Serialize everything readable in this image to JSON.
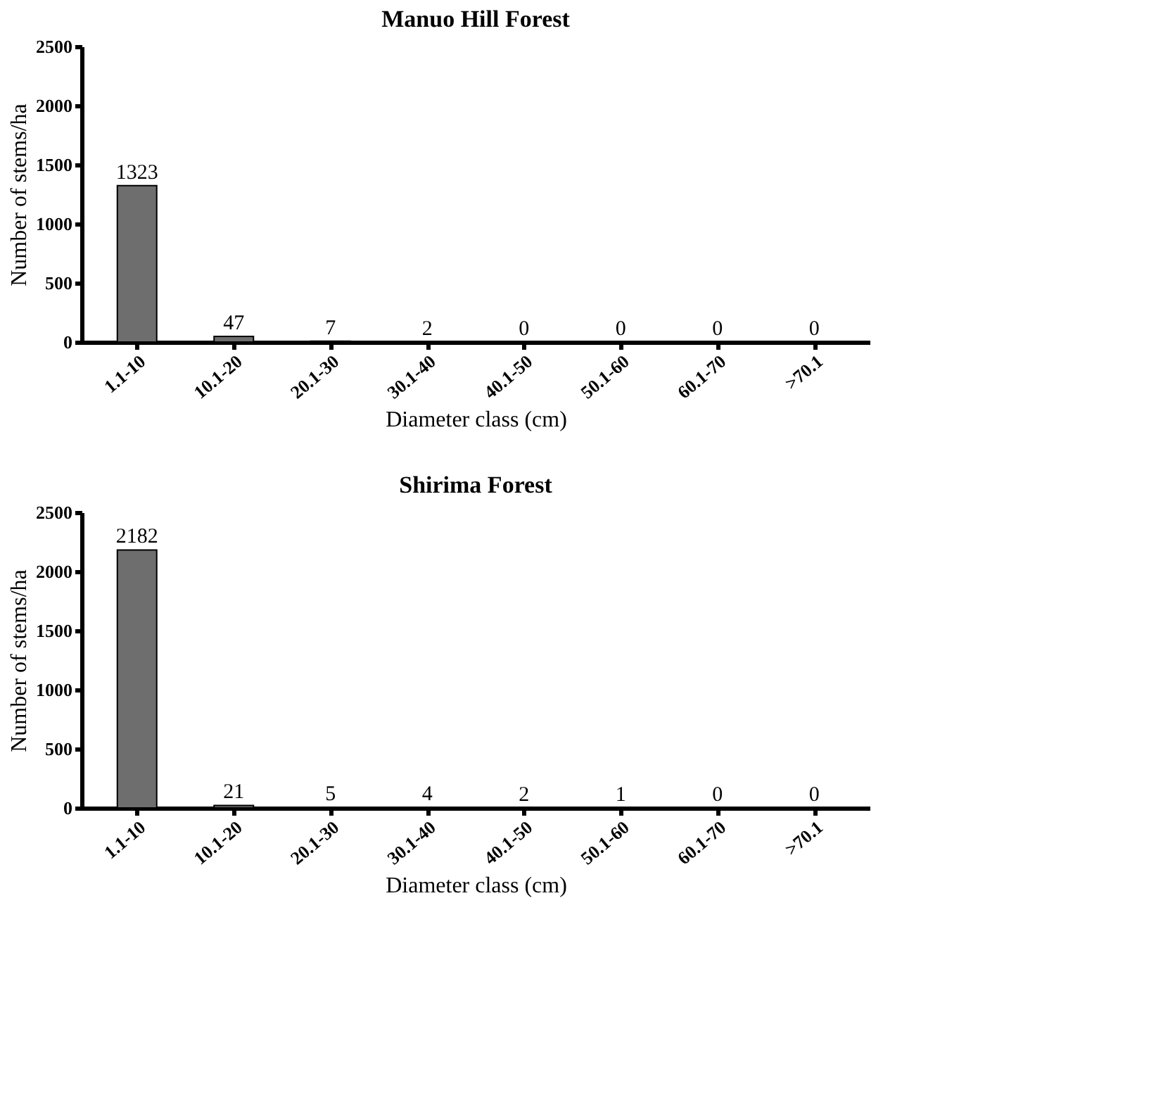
{
  "chart_data": [
    {
      "type": "bar",
      "title": "Manuo Hill Forest",
      "xlabel": "Diameter class (cm)",
      "ylabel": "Number of stems/ha",
      "categories": [
        "1.1-10",
        "10.1-20",
        "20.1-30",
        "30.1-40",
        "40.1-50",
        "50.1-60",
        "60.1-70",
        ">70.1"
      ],
      "values": [
        1323,
        47,
        7,
        2,
        0,
        0,
        0,
        0
      ],
      "color": "#6e6e6e",
      "ylim": [
        0,
        2500
      ],
      "yticks": [
        0,
        500,
        1000,
        1500,
        2000,
        2500
      ],
      "grid": false,
      "data_labels": true
    },
    {
      "type": "bar",
      "title": "Shirima Forest",
      "xlabel": "Diameter class (cm)",
      "ylabel": "Number of stems/ha",
      "categories": [
        "1.1-10",
        "10.1-20",
        "20.1-30",
        "30.1-40",
        "40.1-50",
        "50.1-60",
        "60.1-70",
        ">70.1"
      ],
      "values": [
        2182,
        21,
        5,
        4,
        2,
        1,
        0,
        0
      ],
      "color": "#6e6e6e",
      "ylim": [
        0,
        2500
      ],
      "yticks": [
        0,
        500,
        1000,
        1500,
        2000,
        2500
      ],
      "grid": false,
      "data_labels": true
    }
  ]
}
